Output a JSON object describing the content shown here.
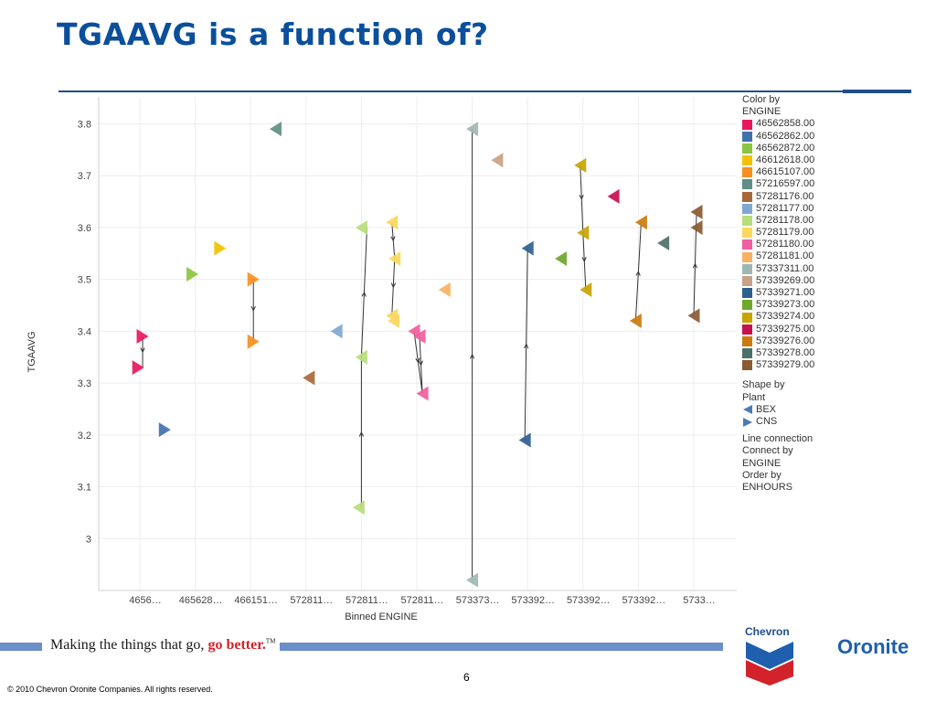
{
  "slide": {
    "title": "TGAAVG is a function of?",
    "page_number": "6",
    "copyright": "© 2010 Chevron Oronite Companies. All rights reserved.",
    "slogan_main": "Making the things that go, ",
    "slogan_accent": "go better.",
    "slogan_tm": "TM",
    "brand_chevron": "Chevron",
    "brand_oronite": "Oronite"
  },
  "legend": {
    "color_title_1": "Color by",
    "color_title_2": "ENGINE",
    "shape_title_1": "Shape by",
    "shape_title_2": "Plant",
    "shapes": [
      {
        "label": "BEX",
        "dir": "left",
        "color": "#4a7bb7"
      },
      {
        "label": "CNS",
        "dir": "right",
        "color": "#4a7bb7"
      }
    ],
    "line_text": [
      "Line connection",
      "Connect by",
      "ENGINE",
      "Order by",
      "ENHOURS"
    ]
  },
  "chart_data": {
    "type": "scatter",
    "xlabel": "Binned ENGINE",
    "ylabel": "TGAAVG",
    "ylim": [
      2.92,
      3.82
    ],
    "yticks": [
      3,
      3.1,
      3.2,
      3.3,
      3.4,
      3.5,
      3.6,
      3.7,
      3.8
    ],
    "x_categories": [
      "4656…",
      "465628…",
      "466151…",
      "572811…",
      "572811…",
      "572811…",
      "573373…",
      "573392…",
      "573392…",
      "573392…",
      "5733…"
    ],
    "engines": [
      {
        "name": "46562858.00",
        "color": "#e8175d"
      },
      {
        "name": "46562862.00",
        "color": "#3f72ad"
      },
      {
        "name": "46562872.00",
        "color": "#8bc53f"
      },
      {
        "name": "46612618.00",
        "color": "#f2c100"
      },
      {
        "name": "46615107.00",
        "color": "#f7901e"
      },
      {
        "name": "57216597.00",
        "color": "#5f8f86"
      },
      {
        "name": "57281176.00",
        "color": "#a8683a"
      },
      {
        "name": "57281177.00",
        "color": "#7fa8d1"
      },
      {
        "name": "57281178.00",
        "color": "#b7dd7a"
      },
      {
        "name": "57281179.00",
        "color": "#fad85c"
      },
      {
        "name": "57281180.00",
        "color": "#f15ea0"
      },
      {
        "name": "57281181.00",
        "color": "#f8b162"
      },
      {
        "name": "57337311.00",
        "color": "#9fb7b3"
      },
      {
        "name": "57339269.00",
        "color": "#c9a184"
      },
      {
        "name": "57339271.00",
        "color": "#2f5f8f"
      },
      {
        "name": "57339273.00",
        "color": "#6fa72b"
      },
      {
        "name": "57339274.00",
        "color": "#c8a400"
      },
      {
        "name": "57339275.00",
        "color": "#c8104e"
      },
      {
        "name": "57339276.00",
        "color": "#cc7a0e"
      },
      {
        "name": "57339278.00",
        "color": "#4d7068"
      },
      {
        "name": "57339279.00",
        "color": "#8a5a32"
      }
    ],
    "points": [
      {
        "engine": 0,
        "x": 0,
        "off": 0.05,
        "y": 3.39,
        "shape": "right"
      },
      {
        "engine": 0,
        "x": 0,
        "off": -0.03,
        "y": 3.33,
        "shape": "right"
      },
      {
        "engine": 1,
        "x": 0,
        "off": 0.45,
        "y": 3.21,
        "shape": "right"
      },
      {
        "engine": 2,
        "x": 1,
        "off": -0.05,
        "y": 3.51,
        "shape": "right"
      },
      {
        "engine": 3,
        "x": 1,
        "off": 0.45,
        "y": 3.56,
        "shape": "right"
      },
      {
        "engine": 4,
        "x": 2,
        "off": 0.05,
        "y": 3.5,
        "shape": "right"
      },
      {
        "engine": 4,
        "x": 2,
        "off": 0.05,
        "y": 3.38,
        "shape": "right"
      },
      {
        "engine": 5,
        "x": 2,
        "off": 0.45,
        "y": 3.79,
        "shape": "left"
      },
      {
        "engine": 6,
        "x": 3,
        "off": 0.05,
        "y": 3.31,
        "shape": "left"
      },
      {
        "engine": 7,
        "x": 3,
        "off": 0.55,
        "y": 3.4,
        "shape": "left"
      },
      {
        "engine": 8,
        "x": 4,
        "off": 0.0,
        "y": 3.6,
        "shape": "left"
      },
      {
        "engine": 8,
        "x": 4,
        "off": 0.0,
        "y": 3.35,
        "shape": "left"
      },
      {
        "engine": 8,
        "x": 4,
        "off": -0.05,
        "y": 3.06,
        "shape": "left"
      },
      {
        "engine": 9,
        "x": 4,
        "off": 0.55,
        "y": 3.61,
        "shape": "left"
      },
      {
        "engine": 9,
        "x": 4,
        "off": 0.6,
        "y": 3.54,
        "shape": "left"
      },
      {
        "engine": 9,
        "x": 4,
        "off": 0.55,
        "y": 3.43,
        "shape": "left"
      },
      {
        "engine": 9,
        "x": 4,
        "off": 0.58,
        "y": 3.42,
        "shape": "left"
      },
      {
        "engine": 10,
        "x": 5,
        "off": -0.05,
        "y": 3.4,
        "shape": "left"
      },
      {
        "engine": 10,
        "x": 5,
        "off": 0.05,
        "y": 3.39,
        "shape": "left"
      },
      {
        "engine": 10,
        "x": 5,
        "off": 0.1,
        "y": 3.28,
        "shape": "left"
      },
      {
        "engine": 11,
        "x": 5,
        "off": 0.5,
        "y": 3.48,
        "shape": "left"
      },
      {
        "engine": 12,
        "x": 6,
        "off": 0.0,
        "y": 3.79,
        "shape": "left"
      },
      {
        "engine": 12,
        "x": 6,
        "off": 0.0,
        "y": 2.92,
        "shape": "left"
      },
      {
        "engine": 13,
        "x": 6,
        "off": 0.45,
        "y": 3.73,
        "shape": "left"
      },
      {
        "engine": 14,
        "x": 7,
        "off": 0.0,
        "y": 3.56,
        "shape": "left"
      },
      {
        "engine": 14,
        "x": 7,
        "off": -0.05,
        "y": 3.19,
        "shape": "left"
      },
      {
        "engine": 15,
        "x": 7,
        "off": 0.6,
        "y": 3.54,
        "shape": "left"
      },
      {
        "engine": 16,
        "x": 8,
        "off": -0.05,
        "y": 3.72,
        "shape": "left"
      },
      {
        "engine": 16,
        "x": 8,
        "off": 0.0,
        "y": 3.59,
        "shape": "left"
      },
      {
        "engine": 16,
        "x": 8,
        "off": 0.05,
        "y": 3.48,
        "shape": "left"
      },
      {
        "engine": 17,
        "x": 8,
        "off": 0.55,
        "y": 3.66,
        "shape": "left"
      },
      {
        "engine": 18,
        "x": 9,
        "off": 0.05,
        "y": 3.61,
        "shape": "left"
      },
      {
        "engine": 18,
        "x": 9,
        "off": -0.05,
        "y": 3.42,
        "shape": "left"
      },
      {
        "engine": 19,
        "x": 9,
        "off": 0.45,
        "y": 3.57,
        "shape": "left"
      },
      {
        "engine": 20,
        "x": 10,
        "off": 0.05,
        "y": 3.63,
        "shape": "left"
      },
      {
        "engine": 20,
        "x": 10,
        "off": 0.05,
        "y": 3.6,
        "shape": "left"
      },
      {
        "engine": 20,
        "x": 10,
        "off": 0.0,
        "y": 3.43,
        "shape": "left"
      }
    ],
    "connections": [
      {
        "x": 0,
        "from": [
          0.05,
          3.39
        ],
        "to": [
          0.05,
          3.33
        ]
      },
      {
        "x": 2,
        "from": [
          0.05,
          3.5
        ],
        "to": [
          0.05,
          3.38
        ]
      },
      {
        "x": 4,
        "from": [
          0.0,
          3.06
        ],
        "to": [
          0.0,
          3.35
        ]
      },
      {
        "x": 4,
        "from": [
          0.0,
          3.35
        ],
        "to": [
          0.1,
          3.6
        ]
      },
      {
        "x": 4,
        "from": [
          0.55,
          3.61
        ],
        "to": [
          0.6,
          3.54
        ]
      },
      {
        "x": 4,
        "from": [
          0.6,
          3.54
        ],
        "to": [
          0.55,
          3.43
        ]
      },
      {
        "x": 5,
        "from": [
          -0.05,
          3.4
        ],
        "to": [
          0.1,
          3.28
        ]
      },
      {
        "x": 5,
        "from": [
          0.05,
          3.39
        ],
        "to": [
          0.1,
          3.28
        ]
      },
      {
        "x": 6,
        "from": [
          0.0,
          2.92
        ],
        "to": [
          0.0,
          3.79
        ]
      },
      {
        "x": 7,
        "from": [
          -0.05,
          3.19
        ],
        "to": [
          0.0,
          3.56
        ]
      },
      {
        "x": 8,
        "from": [
          -0.05,
          3.72
        ],
        "to": [
          0.0,
          3.59
        ]
      },
      {
        "x": 8,
        "from": [
          0.0,
          3.59
        ],
        "to": [
          0.05,
          3.48
        ]
      },
      {
        "x": 9,
        "from": [
          -0.05,
          3.42
        ],
        "to": [
          0.05,
          3.61
        ]
      },
      {
        "x": 10,
        "from": [
          0.0,
          3.43
        ],
        "to": [
          0.05,
          3.63
        ]
      }
    ]
  }
}
